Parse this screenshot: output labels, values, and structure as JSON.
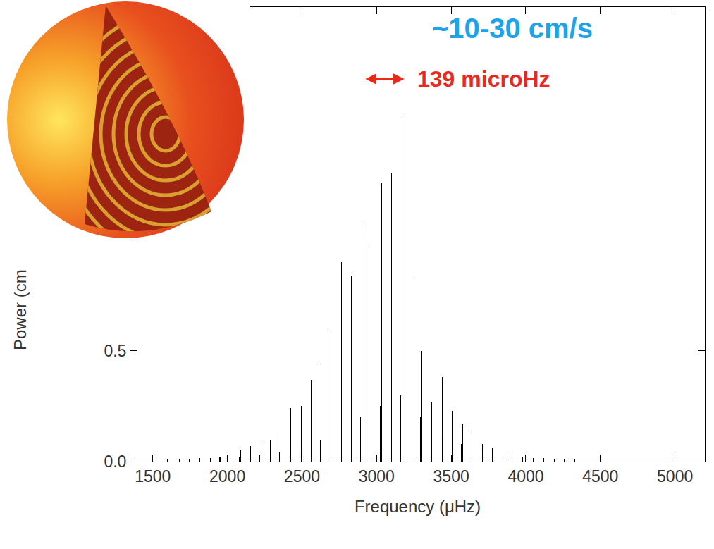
{
  "chart_data": {
    "type": "bar",
    "x": [
      1600,
      1680,
      1745,
      1815,
      1885,
      1950,
      2020,
      2081,
      2090,
      2155,
      2216,
      2225,
      2290,
      2351,
      2360,
      2425,
      2486,
      2495,
      2560,
      2621,
      2630,
      2695,
      2756,
      2765,
      2830,
      2891,
      2900,
      2965,
      3026,
      3035,
      3100,
      3161,
      3170,
      3235,
      3296,
      3305,
      3370,
      3431,
      3440,
      3505,
      3566,
      3575,
      3640,
      3701,
      3710,
      3775,
      3845,
      3910,
      3980,
      4050,
      4120,
      4190,
      4260,
      4330
    ],
    "values": [
      0.01,
      0.01,
      0.01,
      0.015,
      0.015,
      0.02,
      0.03,
      0.02,
      0.05,
      0.07,
      0.03,
      0.09,
      0.1,
      0.04,
      0.15,
      0.24,
      0.06,
      0.25,
      0.37,
      0.1,
      0.44,
      0.6,
      0.15,
      0.9,
      0.84,
      0.2,
      1.07,
      0.98,
      0.25,
      1.26,
      1.3,
      0.3,
      1.57,
      0.82,
      0.2,
      0.5,
      0.27,
      0.12,
      0.38,
      0.23,
      0.08,
      0.17,
      0.13,
      0.05,
      0.08,
      0.06,
      0.04,
      0.03,
      0.02,
      0.015,
      0.015,
      0.01,
      0.01,
      0.01
    ],
    "color": "#000000",
    "xlim": [
      1350,
      5200
    ],
    "xticks": [
      1500,
      2000,
      2500,
      3000,
      3500,
      4000,
      4500,
      5000
    ],
    "ylim": [
      0,
      2.05
    ],
    "yticks": [
      {
        "value": 0,
        "label": "0.0"
      },
      {
        "value": 0.5,
        "label": "0.5"
      }
    ],
    "x_label": "Frequency (μHz)",
    "y_label": "Power (cm",
    "annotations": [
      {
        "text": "~10-30 cm/s",
        "color": "#1fa3e8"
      },
      {
        "text": "139 microHz",
        "color": "#e8291c"
      }
    ],
    "grid": false
  }
}
